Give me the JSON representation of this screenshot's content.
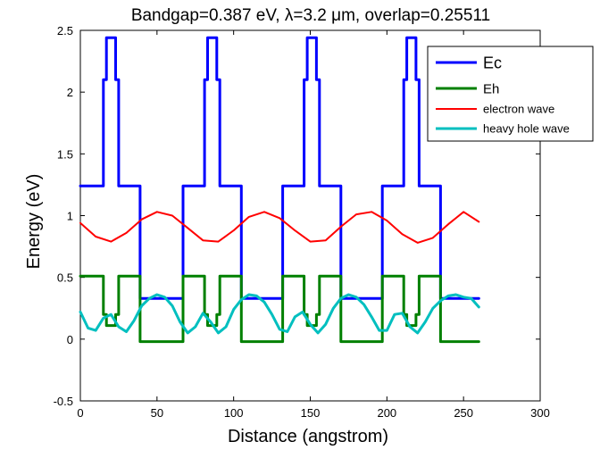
{
  "chart_data": {
    "type": "line",
    "title": "Bandgap=0.387 eV, λ=3.2 μm, overlap=0.25511",
    "xlabel": "Distance (angstrom)",
    "ylabel": "Energy (eV)",
    "xlim": [
      0,
      300
    ],
    "ylim": [
      -0.5,
      2.5
    ],
    "xticks": [
      0,
      50,
      100,
      150,
      200,
      250,
      300
    ],
    "xtick_labels": [
      "0",
      "50",
      "100",
      "150",
      "200",
      "250",
      "300"
    ],
    "yticks": [
      -0.5,
      0,
      0.5,
      1,
      1.5,
      2,
      2.5
    ],
    "ytick_labels": [
      "-0.5",
      "0",
      "0.5",
      "1",
      "1.5",
      "2",
      "2.5"
    ],
    "grid": false,
    "legend_position": "top-right",
    "series": [
      {
        "name": "Ec",
        "color": "#0000ff",
        "x": [
          0,
          15,
          15,
          17,
          17,
          23,
          23,
          25,
          25,
          39,
          39,
          67,
          67,
          81,
          81,
          83,
          83,
          89,
          89,
          91,
          91,
          105,
          105,
          132,
          132,
          146,
          146,
          148,
          148,
          154,
          154,
          156,
          156,
          170,
          170,
          197,
          197,
          211,
          211,
          213,
          213,
          219,
          219,
          221,
          221,
          235,
          235,
          260
        ],
        "y": [
          1.24,
          1.24,
          2.1,
          2.1,
          2.44,
          2.44,
          2.1,
          2.1,
          1.24,
          1.24,
          0.33,
          0.33,
          1.24,
          1.24,
          2.1,
          2.1,
          2.44,
          2.44,
          2.1,
          2.1,
          1.24,
          1.24,
          0.33,
          0.33,
          1.24,
          1.24,
          2.1,
          2.1,
          2.44,
          2.44,
          2.1,
          2.1,
          1.24,
          1.24,
          0.33,
          0.33,
          1.24,
          1.24,
          2.1,
          2.1,
          2.44,
          2.44,
          2.1,
          2.1,
          1.24,
          1.24,
          0.33,
          0.33
        ]
      },
      {
        "name": "Eh",
        "color": "#008000",
        "x": [
          0,
          15,
          15,
          17,
          17,
          23,
          23,
          25,
          25,
          39,
          39,
          67,
          67,
          81,
          81,
          83,
          83,
          89,
          89,
          91,
          91,
          105,
          105,
          132,
          132,
          146,
          146,
          148,
          148,
          154,
          154,
          156,
          156,
          170,
          170,
          197,
          197,
          211,
          211,
          213,
          213,
          219,
          219,
          221,
          221,
          235,
          235,
          260
        ],
        "y": [
          0.51,
          0.51,
          0.2,
          0.2,
          0.11,
          0.11,
          0.2,
          0.2,
          0.51,
          0.51,
          -0.02,
          -0.02,
          0.51,
          0.51,
          0.2,
          0.2,
          0.11,
          0.11,
          0.2,
          0.2,
          0.51,
          0.51,
          -0.02,
          -0.02,
          0.51,
          0.51,
          0.2,
          0.2,
          0.11,
          0.11,
          0.2,
          0.2,
          0.51,
          0.51,
          -0.02,
          -0.02,
          0.51,
          0.51,
          0.2,
          0.2,
          0.11,
          0.11,
          0.2,
          0.2,
          0.51,
          0.51,
          -0.02,
          -0.02
        ]
      },
      {
        "name": "electron wave",
        "color": "#ff0000",
        "x": [
          0,
          10,
          20,
          30,
          40,
          50,
          60,
          70,
          80,
          90,
          100,
          110,
          120,
          130,
          140,
          150,
          160,
          170,
          180,
          190,
          200,
          210,
          220,
          230,
          240,
          250,
          260
        ],
        "y": [
          0.94,
          0.83,
          0.79,
          0.86,
          0.97,
          1.03,
          1.0,
          0.9,
          0.8,
          0.79,
          0.88,
          0.99,
          1.03,
          0.98,
          0.88,
          0.79,
          0.8,
          0.91,
          1.01,
          1.03,
          0.96,
          0.85,
          0.78,
          0.82,
          0.93,
          1.03,
          0.95
        ]
      },
      {
        "name": "heavy hole wave",
        "color": "#00bfbf",
        "x": [
          0,
          5,
          10,
          15,
          20,
          25,
          30,
          35,
          40,
          45,
          50,
          55,
          60,
          65,
          70,
          75,
          80,
          85,
          90,
          95,
          100,
          105,
          110,
          115,
          120,
          125,
          130,
          135,
          140,
          145,
          150,
          155,
          160,
          165,
          170,
          175,
          180,
          185,
          190,
          195,
          200,
          205,
          210,
          215,
          220,
          225,
          230,
          235,
          240,
          245,
          250,
          255,
          260
        ],
        "y": [
          0.22,
          0.09,
          0.07,
          0.17,
          0.2,
          0.1,
          0.06,
          0.15,
          0.27,
          0.33,
          0.36,
          0.34,
          0.27,
          0.14,
          0.05,
          0.1,
          0.21,
          0.14,
          0.05,
          0.1,
          0.24,
          0.32,
          0.36,
          0.35,
          0.3,
          0.2,
          0.08,
          0.06,
          0.18,
          0.22,
          0.12,
          0.05,
          0.12,
          0.25,
          0.33,
          0.36,
          0.34,
          0.28,
          0.18,
          0.07,
          0.07,
          0.2,
          0.21,
          0.1,
          0.05,
          0.14,
          0.25,
          0.31,
          0.35,
          0.36,
          0.34,
          0.33,
          0.26
        ]
      }
    ]
  }
}
